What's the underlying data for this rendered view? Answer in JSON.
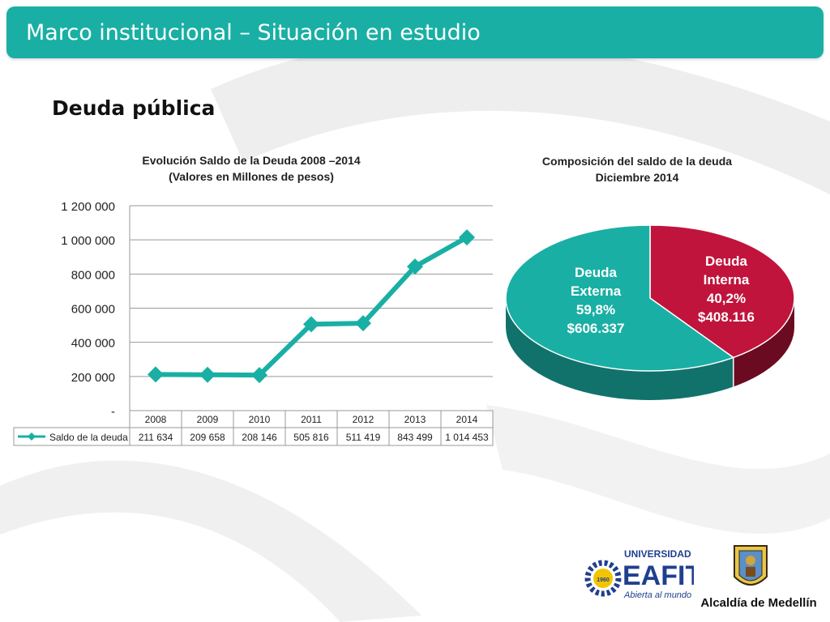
{
  "slide": {
    "header_title": "Marco institucional – Situación en estudio",
    "section_title": "Deuda pública",
    "colors": {
      "teal": "#1aafa4",
      "crimson": "#c0143c"
    }
  },
  "chart_data": [
    {
      "type": "line",
      "title": "Evolución Saldo de la Deuda 2008 –2014",
      "subtitle": "(Valores en Millones de pesos)",
      "categories": [
        "2008",
        "2009",
        "2010",
        "2011",
        "2012",
        "2013",
        "2014"
      ],
      "series": [
        {
          "name": "Saldo de la deuda",
          "values": [
            211634,
            209658,
            208146,
            505816,
            511419,
            843499,
            1014453
          ],
          "labels": [
            "211 634",
            "209 658",
            "208 146",
            "505 816",
            "511 419",
            "843 499",
            "1 014 453"
          ]
        }
      ],
      "y_ticks": [
        {
          "value": 0,
          "label": "-"
        },
        {
          "value": 200000,
          "label": "200 000"
        },
        {
          "value": 400000,
          "label": "400 000"
        },
        {
          "value": 600000,
          "label": "600 000"
        },
        {
          "value": 800000,
          "label": "800 000"
        },
        {
          "value": 1000000,
          "label": "1 000 000"
        },
        {
          "value": 1200000,
          "label": "1 200 000"
        }
      ],
      "ylim": [
        0,
        1200000
      ],
      "grid": true,
      "data_table": true
    },
    {
      "type": "pie",
      "title": "Composición del saldo de la deuda",
      "subtitle": "Diciembre 2014",
      "slices": [
        {
          "name": "Deuda Externa",
          "name_lines": [
            "Deuda",
            "Externa"
          ],
          "percent": 59.8,
          "percent_label": "59,8%",
          "value_label": "$606.337",
          "color": "#1aafa4"
        },
        {
          "name": "Deuda Interna",
          "name_lines": [
            "Deuda",
            "Interna"
          ],
          "percent": 40.2,
          "percent_label": "40,2%",
          "value_label": "$408.116",
          "color": "#c0143c"
        }
      ]
    }
  ],
  "logos": {
    "eafit_line1": "UNIVERSIDAD",
    "eafit_line2": "EAFIT",
    "eafit_tagline": "Abierta al mundo",
    "eafit_year": "1960",
    "alcaldia": "Alcaldía de Medellín"
  }
}
